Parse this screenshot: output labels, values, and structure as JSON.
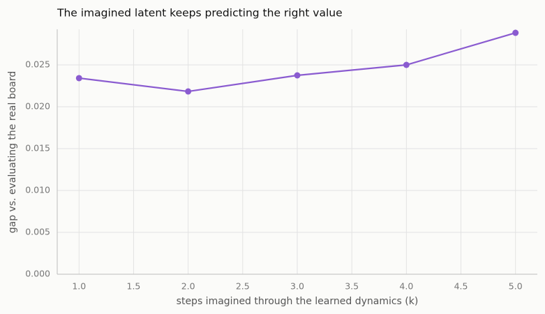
{
  "chart_data": {
    "type": "line",
    "title": "The imagined latent keeps predicting the right value",
    "x_label": "steps imagined through the learned dynamics (k)",
    "y_label": "gap vs. evaluating the real board",
    "x": [
      1,
      2,
      3,
      4,
      5
    ],
    "series": [
      {
        "name": "gap",
        "color": "#8a5bd0",
        "values": [
          0.02342,
          0.02183,
          0.02375,
          0.025,
          0.02883
        ]
      }
    ],
    "xlim": [
      0.8,
      5.2
    ],
    "xticks": [
      {
        "value": 1,
        "label": "1.0"
      },
      {
        "value": 1.5,
        "label": "1.5"
      },
      {
        "value": 2,
        "label": "2.0"
      },
      {
        "value": 2.5,
        "label": "2.5"
      },
      {
        "value": 3,
        "label": "3.0"
      },
      {
        "value": 3.5,
        "label": "3.5"
      },
      {
        "value": 4,
        "label": "4.0"
      },
      {
        "value": 4.5,
        "label": "4.5"
      },
      {
        "value": 5,
        "label": "5.0"
      }
    ],
    "ylim": [
      0,
      0.02925
    ],
    "yticks": [
      {
        "value": 0,
        "label": "0.000"
      },
      {
        "value": 0.005,
        "label": "0.005"
      },
      {
        "value": 0.01,
        "label": "0.010"
      },
      {
        "value": 0.015,
        "label": "0.015"
      },
      {
        "value": 0.02,
        "label": "0.020"
      },
      {
        "value": 0.025,
        "label": "0.025"
      }
    ],
    "grid": true
  }
}
